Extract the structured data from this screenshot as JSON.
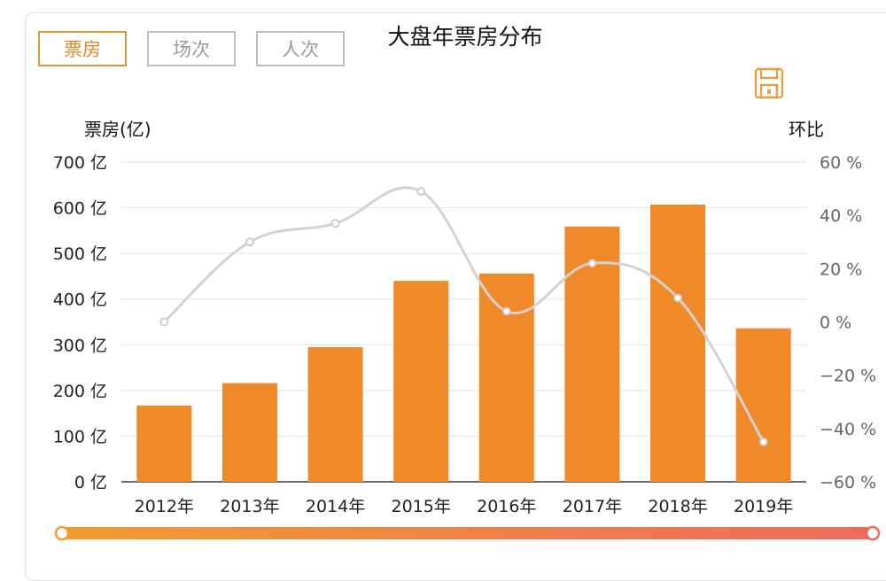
{
  "title": "大盘年票房分布",
  "tabs": [
    {
      "label": "票房",
      "active": true
    },
    {
      "label": "场次",
      "active": false
    },
    {
      "label": "人次",
      "active": false
    }
  ],
  "icons": {
    "save": "save-icon"
  },
  "colors": {
    "bar": "#f08a28",
    "line": "#d8d0d0",
    "accent": "#d98a2a",
    "slider_start": "#f29b2f",
    "slider_end": "#ee6a5c"
  },
  "chart_data": {
    "type": "bar",
    "categories": [
      "2012年",
      "2013年",
      "2014年",
      "2015年",
      "2016年",
      "2017年",
      "2018年",
      "2019年"
    ],
    "series": [
      {
        "type": "bar",
        "axis": "left",
        "values": [
          167,
          216,
          295,
          440,
          456,
          559,
          607,
          336
        ]
      },
      {
        "type": "line",
        "axis": "right",
        "values": [
          0,
          30,
          37,
          49,
          4,
          22,
          9,
          -45
        ]
      }
    ],
    "ylabel_left": "票房(亿)",
    "ylabel_right": "环比",
    "ylim_left": [
      0,
      700
    ],
    "ylim_right": [
      -60,
      60
    ],
    "yticks_left": [
      "0 亿",
      "100 亿",
      "200 亿",
      "300 亿",
      "400 亿",
      "500 亿",
      "600 亿",
      "700 亿"
    ],
    "yticks_right": [
      "−60 %",
      "−40 %",
      "−20 %",
      "0 %",
      "20 %",
      "40 %",
      "60 %"
    ],
    "grid": true
  }
}
